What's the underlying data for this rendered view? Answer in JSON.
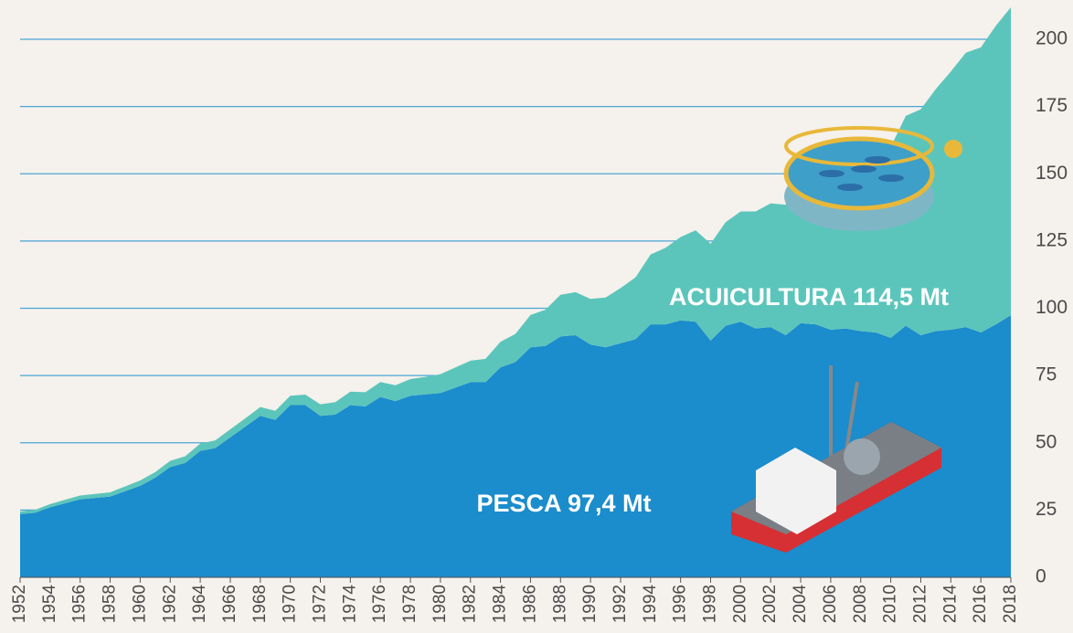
{
  "chart_data": {
    "type": "stacked-area",
    "x": [
      1952,
      1953,
      1954,
      1955,
      1956,
      1957,
      1958,
      1959,
      1960,
      1961,
      1962,
      1963,
      1964,
      1965,
      1966,
      1967,
      1968,
      1969,
      1970,
      1971,
      1972,
      1973,
      1974,
      1975,
      1976,
      1977,
      1978,
      1979,
      1980,
      1981,
      1982,
      1983,
      1984,
      1985,
      1986,
      1987,
      1988,
      1989,
      1990,
      1991,
      1992,
      1993,
      1994,
      1995,
      1996,
      1997,
      1998,
      1999,
      2000,
      2001,
      2002,
      2003,
      2004,
      2005,
      2006,
      2007,
      2008,
      2009,
      2010,
      2011,
      2012,
      2013,
      2014,
      2015,
      2016,
      2017,
      2018
    ],
    "series": [
      {
        "name": "PESCA",
        "color": "#1b8ccc",
        "values": [
          23.5,
          24,
          26,
          27.5,
          29,
          29.5,
          30,
          32,
          34,
          37,
          41,
          42.5,
          47,
          48,
          52,
          56,
          60,
          58.5,
          64,
          64,
          60,
          60.5,
          64,
          63.5,
          67,
          65.5,
          67.5,
          68,
          68.5,
          70.5,
          72.5,
          72.5,
          78,
          80,
          85.5,
          86,
          89.5,
          90,
          86.5,
          85.5,
          87,
          88.5,
          94,
          94,
          95.5,
          95,
          88,
          93.5,
          95,
          92.5,
          93,
          90,
          94.5,
          94,
          92,
          92.5,
          91.5,
          91,
          89,
          93.5,
          90,
          91.5,
          92,
          93,
          91,
          94,
          97.4
        ]
      },
      {
        "name": "ACUICULTURA",
        "color": "#5cc5bb",
        "values": [
          1.0,
          1.1,
          1.2,
          1.3,
          1.4,
          1.5,
          1.6,
          1.8,
          2.0,
          2.1,
          2.3,
          2.5,
          2.7,
          2.9,
          3.0,
          3.1,
          3.3,
          3.4,
          3.5,
          3.9,
          4.3,
          4.6,
          5.0,
          5.3,
          5.6,
          5.9,
          6.2,
          6.5,
          7.0,
          7.5,
          8.0,
          8.7,
          9.5,
          10.5,
          12.0,
          13.5,
          15.5,
          16.0,
          17.0,
          18.5,
          20.5,
          23.0,
          26.0,
          28.5,
          31.0,
          34.0,
          36.0,
          38.5,
          41.0,
          43.5,
          46.0,
          48.5,
          51.0,
          54.0,
          56.0,
          58.5,
          62.0,
          65.5,
          71.0,
          78.0,
          84.0,
          90.0,
          96.0,
          102.0,
          106.0,
          111.0,
          114.5
        ]
      }
    ],
    "annotations": [
      "ACUICULTURA 114,5 Mt",
      "PESCA 97,4 Mt"
    ],
    "xlim": [
      1952,
      2018
    ],
    "xticks": [
      1952,
      1954,
      1956,
      1958,
      1960,
      1962,
      1964,
      1966,
      1968,
      1970,
      1972,
      1974,
      1976,
      1978,
      1980,
      1982,
      1984,
      1986,
      1988,
      1990,
      1992,
      1994,
      1996,
      1998,
      2000,
      2002,
      2004,
      2006,
      2008,
      2010,
      2012,
      2014,
      2016,
      2018
    ],
    "ylim": [
      0,
      214.6
    ],
    "yticks": [
      0,
      25,
      50,
      75,
      100,
      125,
      150,
      175,
      200
    ],
    "grid": true,
    "grid_color": "#4aa6d6"
  }
}
